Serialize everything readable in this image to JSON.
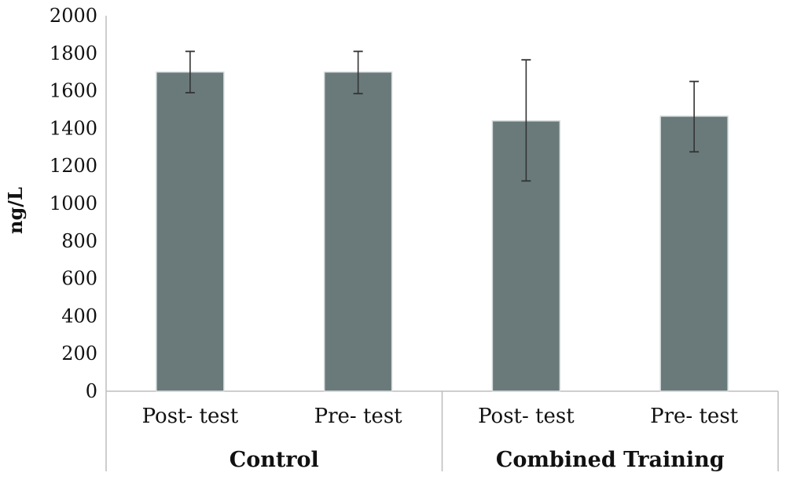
{
  "chart_data": {
    "type": "bar",
    "ylabel": "ng/L",
    "xlabel": "",
    "title": "",
    "ylim": [
      0,
      2000
    ],
    "yticks": [
      0,
      200,
      400,
      600,
      800,
      1000,
      1200,
      1400,
      1600,
      1800,
      2000
    ],
    "grid": false,
    "legend": "none",
    "bar_color": "#6a7a7a",
    "groups": [
      {
        "name": "Control",
        "categories": [
          "Post- test",
          "Pre- test"
        ]
      },
      {
        "name": "Combined Training",
        "categories": [
          "Post- test",
          "Pre- test"
        ]
      }
    ],
    "categories": [
      "Post- test",
      "Pre- test",
      "Post- test",
      "Pre- test"
    ],
    "values": [
      1700,
      1700,
      1440,
      1465
    ],
    "error_low": [
      1590,
      1585,
      1120,
      1275
    ],
    "error_high": [
      1810,
      1810,
      1765,
      1650
    ]
  }
}
